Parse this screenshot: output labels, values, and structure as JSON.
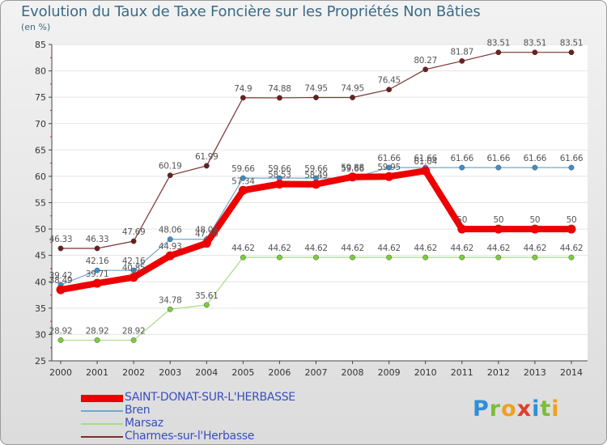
{
  "title": "Evolution du Taux de Taxe Foncière sur les Propriétés Non Bâties",
  "unit": "(en %)",
  "logo": {
    "p": "P",
    "r": "r",
    "o": "o",
    "x": "x",
    "i": "i",
    "t": "t",
    "i2": "i"
  },
  "chart_data": {
    "type": "line",
    "title": "Evolution du Taux de Taxe Foncière sur les Propriétés Non Bâties",
    "ylabel": "(en %)",
    "xlabel": "",
    "ylim": [
      25,
      85
    ],
    "yticks": [
      25,
      30,
      35,
      40,
      45,
      50,
      55,
      60,
      65,
      70,
      75,
      80,
      85
    ],
    "categories": [
      "2000",
      "2001",
      "2002",
      "2003",
      "2004",
      "2005",
      "2006",
      "2007",
      "2008",
      "2009",
      "2010",
      "2011",
      "2012",
      "2013",
      "2014"
    ],
    "legend_position": "bottom-left",
    "series": [
      {
        "name": "SAINT-DONAT-SUR-L'HERBASSE",
        "color": "#ee0000",
        "width": 8,
        "marker": "#ee0000",
        "values": [
          38.49,
          39.71,
          40.85,
          44.93,
          47.3,
          57.34,
          58.53,
          58.49,
          59.88,
          59.95,
          61.04,
          50,
          50,
          50,
          50
        ],
        "labels": [
          "38.49",
          "39.71",
          "40.85",
          "44.93",
          "47.30",
          "57.34",
          "58.53",
          "58.49",
          "59.88",
          "59.95",
          "61.04",
          "50",
          "50",
          "50",
          "50"
        ]
      },
      {
        "name": "Bren",
        "color": "#6fa8cf",
        "width": 1.2,
        "marker": "#3d8fcc",
        "values": [
          39.42,
          42.16,
          42.16,
          48.06,
          48.06,
          59.66,
          59.66,
          59.66,
          59.66,
          61.66,
          61.66,
          61.66,
          61.66,
          61.66,
          61.66
        ],
        "labels": [
          "39.42",
          "42.16",
          "42.16",
          "48.06",
          "48.06",
          "59.66",
          "59.66",
          "59.66",
          "59.66",
          "61.66",
          "61.66",
          "61.66",
          "61.66",
          "61.66",
          "61.66"
        ]
      },
      {
        "name": "Marsaz",
        "color": "#a8dc86",
        "width": 1.2,
        "marker": "#7ccc3c",
        "values": [
          28.92,
          28.92,
          28.92,
          34.78,
          35.61,
          44.62,
          44.62,
          44.62,
          44.62,
          44.62,
          44.62,
          44.62,
          44.62,
          44.62,
          44.62
        ],
        "labels": [
          "28.92",
          "28.92",
          "28.92",
          "34.78",
          "35.61",
          "44.62",
          "44.62",
          "44.62",
          "44.62",
          "44.62",
          "44.62",
          "44.62",
          "44.62",
          "44.62",
          "44.62"
        ]
      },
      {
        "name": "Charmes-sur-l'Herbasse",
        "color": "#7a3030",
        "width": 1.2,
        "marker": "#6b2020",
        "values": [
          46.33,
          46.33,
          47.69,
          60.19,
          61.99,
          74.9,
          74.88,
          74.95,
          74.95,
          76.45,
          80.27,
          81.87,
          83.51,
          83.51,
          83.51
        ],
        "labels": [
          "46.33",
          "46.33",
          "47.69",
          "60.19",
          "61.99",
          "74.9",
          "74.88",
          "74.95",
          "74.95",
          "76.45",
          "80.27",
          "81.87",
          "83.51",
          "83.51",
          "83.51"
        ]
      }
    ]
  }
}
